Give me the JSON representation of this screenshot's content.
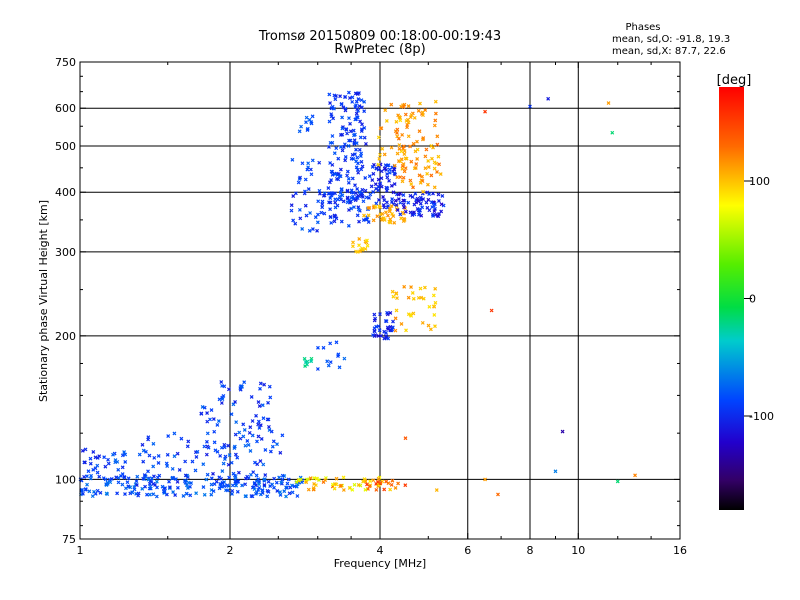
{
  "title_line1": "Tromsø 20150809 00:18:00-00:19:43",
  "title_line2": "RwPretec (8p)",
  "stats": {
    "heading": "Phases",
    "line_o": "mean, sd,O: -91.8, 19.3",
    "line_x": "mean, sd,X:  87.7, 22.6"
  },
  "colorbar": {
    "label": "[deg]",
    "range": [
      -180,
      180
    ],
    "ticks": [
      {
        "value": 100,
        "label": "100"
      },
      {
        "value": 0,
        "label": "0"
      },
      {
        "value": -100,
        "label": "-100"
      }
    ]
  },
  "chart_data": {
    "type": "scatter",
    "xlabel": "Frequency [MHz]",
    "ylabel": "Stationary phase Virtual Height [km]",
    "xscale": "log",
    "yscale": "log",
    "xlim": [
      1,
      16
    ],
    "ylim": [
      75,
      750
    ],
    "grid": true,
    "xticks": [
      {
        "value": 1,
        "label": "1"
      },
      {
        "value": 2,
        "label": "2"
      },
      {
        "value": 4,
        "label": "4"
      },
      {
        "value": 6,
        "label": "6"
      },
      {
        "value": 8,
        "label": "8"
      },
      {
        "value": 10,
        "label": "10"
      },
      {
        "value": 16,
        "label": "16"
      }
    ],
    "xgrid": [
      2,
      4,
      6,
      8,
      10
    ],
    "yticks": [
      {
        "value": 75,
        "label": "75"
      },
      {
        "value": 100,
        "label": "100"
      },
      {
        "value": 200,
        "label": "200"
      },
      {
        "value": 300,
        "label": "300"
      },
      {
        "value": 400,
        "label": "400"
      },
      {
        "value": 500,
        "label": "500"
      },
      {
        "value": 600,
        "label": "600"
      },
      {
        "value": 750,
        "label": "750"
      }
    ],
    "ygrid": [
      100,
      200,
      300,
      400,
      500,
      600
    ],
    "color_by": "phase_deg",
    "clusters": [
      {
        "f_range": [
          1.0,
          2.8
        ],
        "h_range": [
          92,
          102
        ],
        "phase_range": [
          -105,
          -80
        ],
        "count": 210
      },
      {
        "f_range": [
          1.0,
          1.25
        ],
        "h_range": [
          100,
          117
        ],
        "phase_range": [
          -110,
          -85
        ],
        "count": 40
      },
      {
        "f_range": [
          1.3,
          2.6
        ],
        "h_range": [
          97,
          125
        ],
        "phase_range": [
          -110,
          -85
        ],
        "count": 90
      },
      {
        "f_range": [
          1.75,
          2.45
        ],
        "h_range": [
          115,
          162
        ],
        "phase_range": [
          -110,
          -85
        ],
        "count": 70
      },
      {
        "f_range": [
          2.7,
          4.3
        ],
        "h_range": [
          95,
          101
        ],
        "phase_range": [
          40,
          120
        ],
        "count": 60
      },
      {
        "f_range": [
          3.75,
          4.5
        ],
        "h_range": [
          95,
          99
        ],
        "phase_range": [
          110,
          160
        ],
        "count": 12
      },
      {
        "f_range": [
          2.75,
          2.95
        ],
        "h_range": [
          170,
          180
        ],
        "phase_range": [
          -60,
          -40
        ],
        "count": 8
      },
      {
        "f_range": [
          3.0,
          3.5
        ],
        "h_range": [
          170,
          195
        ],
        "phase_range": [
          -100,
          -85
        ],
        "count": 12
      },
      {
        "f_range": [
          3.85,
          4.25
        ],
        "h_range": [
          197,
          225
        ],
        "phase_range": [
          -115,
          -95
        ],
        "count": 35
      },
      {
        "f_range": [
          4.2,
          5.2
        ],
        "h_range": [
          205,
          255
        ],
        "phase_range": [
          70,
          110
        ],
        "count": 35
      },
      {
        "f_range": [
          2.65,
          3.05
        ],
        "h_range": [
          330,
          470
        ],
        "phase_range": [
          -110,
          -85
        ],
        "count": 35
      },
      {
        "f_range": [
          2.75,
          2.95
        ],
        "h_range": [
          530,
          590
        ],
        "phase_range": [
          -100,
          -85
        ],
        "count": 10
      },
      {
        "f_range": [
          3.15,
          3.75
        ],
        "h_range": [
          380,
          650
        ],
        "phase_range": [
          -110,
          -90
        ],
        "count": 160
      },
      {
        "f_range": [
          3.0,
          3.8
        ],
        "h_range": [
          340,
          400
        ],
        "phase_range": [
          -110,
          -90
        ],
        "count": 60
      },
      {
        "f_range": [
          3.5,
          3.8
        ],
        "h_range": [
          290,
          320
        ],
        "phase_range": [
          70,
          100
        ],
        "count": 15
      },
      {
        "f_range": [
          3.8,
          4.3
        ],
        "h_range": [
          370,
          460
        ],
        "phase_range": [
          -115,
          -95
        ],
        "count": 60
      },
      {
        "f_range": [
          3.7,
          4.5
        ],
        "h_range": [
          345,
          375
        ],
        "phase_range": [
          80,
          110
        ],
        "count": 40
      },
      {
        "f_range": [
          4.3,
          5.4
        ],
        "h_range": [
          355,
          400
        ],
        "phase_range": [
          -120,
          -95
        ],
        "count": 70
      },
      {
        "f_range": [
          4.3,
          5.3
        ],
        "h_range": [
          400,
          620
        ],
        "phase_range": [
          80,
          120
        ],
        "count": 90
      },
      {
        "f_range": [
          3.9,
          4.6
        ],
        "h_range": [
          450,
          630
        ],
        "phase_range": [
          70,
          110
        ],
        "count": 25
      }
    ],
    "isolated_points": [
      {
        "f": 6.5,
        "h": 590,
        "phase": 150
      },
      {
        "f": 8.0,
        "h": 605,
        "phase": -100
      },
      {
        "f": 8.7,
        "h": 628,
        "phase": -110
      },
      {
        "f": 11.5,
        "h": 615,
        "phase": 100
      },
      {
        "f": 11.7,
        "h": 533,
        "phase": -40
      },
      {
        "f": 6.7,
        "h": 226,
        "phase": 150
      },
      {
        "f": 9.3,
        "h": 126,
        "phase": -130
      },
      {
        "f": 9.0,
        "h": 104,
        "phase": -80
      },
      {
        "f": 4.5,
        "h": 122,
        "phase": 130
      },
      {
        "f": 13.0,
        "h": 102,
        "phase": 110
      },
      {
        "f": 12.0,
        "h": 99,
        "phase": -40
      },
      {
        "f": 6.5,
        "h": 100,
        "phase": 100
      },
      {
        "f": 6.9,
        "h": 93,
        "phase": 120
      },
      {
        "f": 5.2,
        "h": 95,
        "phase": 90
      }
    ]
  }
}
